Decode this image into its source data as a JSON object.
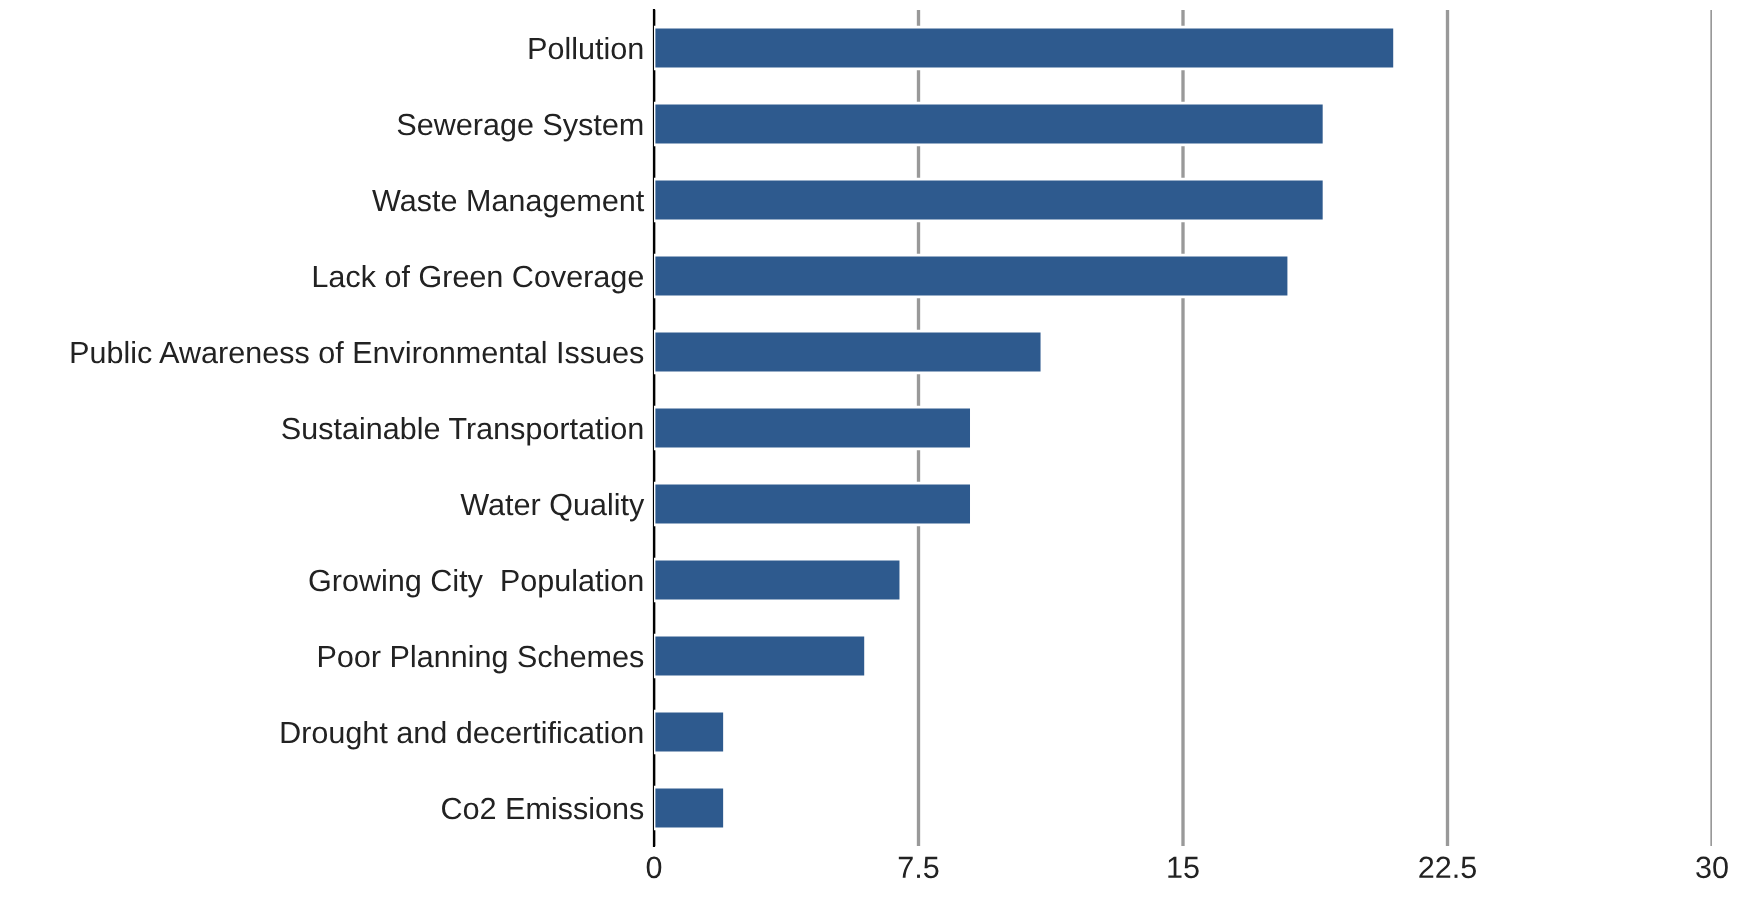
{
  "chart_data": {
    "type": "bar",
    "orientation": "horizontal",
    "categories": [
      "Pollution",
      "Sewerage System",
      "Waste Management",
      "Lack of Green Coverage",
      "Public Awareness of Environmental Issues",
      "Sustainable Transportation",
      "Water Quality",
      "Growing City  Population",
      "Poor Planning Schemes",
      "Drought and decertification",
      "Co2 Emissions"
    ],
    "values": [
      21,
      19,
      19,
      18,
      11,
      9,
      9,
      7,
      6,
      2,
      2
    ],
    "color": "#2e5a8e",
    "xlim": [
      0,
      30
    ],
    "xticks": [
      0,
      7.5,
      15,
      22.5,
      30
    ],
    "grid": "x",
    "legend": false
  }
}
